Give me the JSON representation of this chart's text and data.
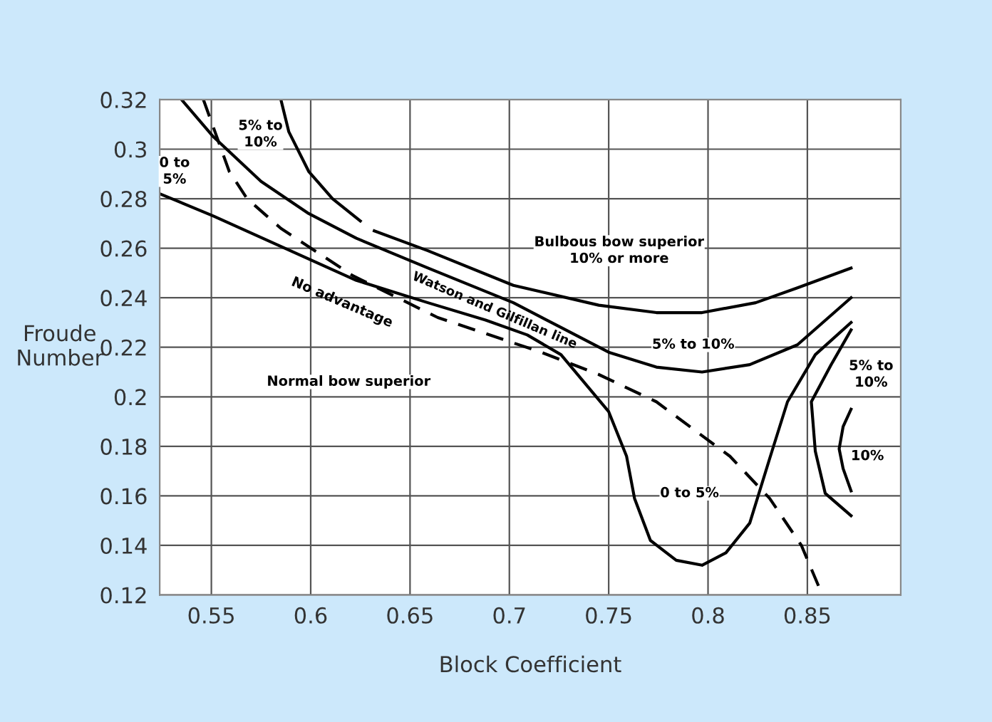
{
  "chart_data": {
    "type": "line",
    "xlabel": "Block Coefficient",
    "ylabel": "Froude\nNumber",
    "xlim": [
      0.524,
      0.897
    ],
    "ylim": [
      0.12,
      0.32
    ],
    "xticks": [
      0.55,
      0.6,
      0.65,
      0.7,
      0.75,
      0.8,
      0.85
    ],
    "yticks": [
      0.12,
      0.14,
      0.16,
      0.18,
      0.2,
      0.22,
      0.24,
      0.26,
      0.28,
      0.3,
      0.32
    ],
    "grid": true,
    "marker": "none",
    "series": [
      {
        "color": "#000000",
        "line_style": "solid",
        "x": [
          0.585,
          0.589,
          0.599,
          0.611,
          0.625,
          0.628,
          0.632,
          0.659,
          0.702,
          0.745,
          0.774,
          0.797,
          0.824,
          0.845,
          0.872
        ],
        "values": [
          0.32,
          0.307,
          0.291,
          0.28,
          0.271,
          null,
          0.267,
          0.259,
          0.245,
          0.237,
          0.234,
          0.234,
          0.238,
          0.244,
          0.252
        ]
      },
      {
        "color": "#000000",
        "line_style": "solid",
        "x": [
          0.535,
          0.551,
          0.575,
          0.599,
          0.623,
          0.659,
          0.702,
          0.726,
          0.75,
          0.774,
          0.797,
          0.821,
          0.845,
          0.872
        ],
        "values": [
          0.32,
          0.305,
          0.287,
          0.274,
          0.264,
          0.252,
          0.238,
          0.228,
          0.218,
          0.212,
          0.21,
          0.213,
          0.221,
          0.24
        ]
      },
      {
        "color": "#000000",
        "line_style": "solid",
        "x": [
          0.524,
          0.551,
          0.587,
          0.623,
          0.659,
          0.688,
          0.709,
          0.726,
          0.75,
          0.759,
          0.763,
          0.771,
          0.784,
          0.797,
          0.809,
          0.821,
          0.831,
          0.84,
          0.854,
          0.872
        ],
        "values": [
          0.282,
          0.273,
          0.26,
          0.247,
          0.238,
          0.231,
          0.225,
          0.217,
          0.194,
          0.176,
          0.159,
          0.142,
          0.134,
          0.132,
          0.137,
          0.149,
          0.175,
          0.198,
          0.217,
          0.23
        ]
      },
      {
        "color": "#000000",
        "line_style": "dashed",
        "x": [
          0.546,
          0.559,
          0.568,
          0.585,
          0.621,
          0.664,
          0.716,
          0.745,
          0.774,
          0.811,
          0.831,
          0.847,
          0.857
        ],
        "values": [
          0.32,
          0.291,
          0.28,
          0.268,
          0.249,
          0.232,
          0.218,
          0.209,
          0.198,
          0.176,
          0.159,
          0.14,
          0.121
        ]
      },
      {
        "color": "#000000",
        "line_style": "solid",
        "x": [
          0.872,
          0.862,
          0.852,
          0.854,
          0.859,
          0.872
        ],
        "values": [
          0.227,
          0.213,
          0.198,
          0.178,
          0.161,
          0.152
        ]
      },
      {
        "color": "#000000",
        "line_style": "solid",
        "x": [
          0.872,
          0.868,
          0.866,
          0.868,
          0.872
        ],
        "values": [
          0.195,
          0.188,
          0.179,
          0.171,
          0.162
        ]
      }
    ],
    "annotations": [
      "5% to\n10%",
      "0 to\n5%",
      "Bulbous bow superior\n10% or more",
      "No advantage",
      "Watson and Gilfillan line",
      "5% to 10%",
      "Normal bow superior",
      "5% to\n10%",
      "10%",
      "0 to 5%"
    ]
  }
}
